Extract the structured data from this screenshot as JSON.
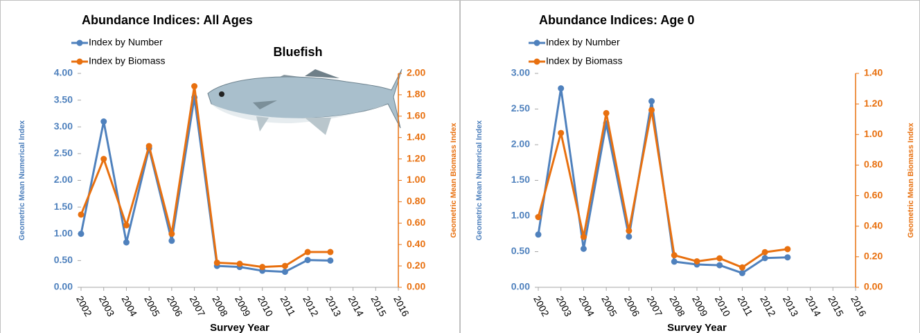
{
  "chart_data": [
    {
      "type": "line",
      "title": "Abundance Indices:  All Ages",
      "annotation": "Bluefish",
      "x_label": "Survey Year",
      "y_label": "Geometric Mean Numerical Index",
      "y2_label": "Geometric Mean Biomass Index",
      "categories": [
        "2002",
        "2003",
        "2004",
        "2005",
        "2006",
        "2007",
        "2008",
        "2009",
        "2010",
        "2011",
        "2012",
        "2013",
        "2014",
        "2015",
        "2016"
      ],
      "series": [
        {
          "name": "Index by Number",
          "color": "#4f81bd",
          "values": [
            1.0,
            3.1,
            0.84,
            2.6,
            0.87,
            3.55,
            0.4,
            0.38,
            0.31,
            0.29,
            0.51,
            0.5,
            null,
            null,
            null
          ]
        },
        {
          "name": "Index by Biomass",
          "color": "#e8700f",
          "axis": "y2",
          "values": [
            0.68,
            1.2,
            0.58,
            1.32,
            0.5,
            1.88,
            0.23,
            0.22,
            0.19,
            0.2,
            0.33,
            0.33,
            null,
            null,
            null
          ]
        }
      ],
      "ylim": [
        0,
        4
      ],
      "yticks": [
        {
          "value": 0,
          "label": "0.00"
        },
        {
          "value": 0.5,
          "label": "0.50"
        },
        {
          "value": 1,
          "label": "1.00"
        },
        {
          "value": 1.5,
          "label": "1.50"
        },
        {
          "value": 2,
          "label": "2.00"
        },
        {
          "value": 2.5,
          "label": "2.50"
        },
        {
          "value": 3,
          "label": "3.00"
        },
        {
          "value": 3.5,
          "label": "3.50"
        },
        {
          "value": 4,
          "label": "4.00"
        }
      ],
      "y2lim": [
        0,
        2
      ],
      "y2ticks": [
        {
          "value": 0,
          "label": "0.00"
        },
        {
          "value": 0.2,
          "label": "0.20"
        },
        {
          "value": 0.4,
          "label": "0.40"
        },
        {
          "value": 0.6,
          "label": "0.60"
        },
        {
          "value": 0.8,
          "label": "0.80"
        },
        {
          "value": 1,
          "label": "1.00"
        },
        {
          "value": 1.2,
          "label": "1.20"
        },
        {
          "value": 1.4,
          "label": "1.40"
        },
        {
          "value": 1.6,
          "label": "1.60"
        },
        {
          "value": 1.8,
          "label": "1.80"
        },
        {
          "value": 2,
          "label": "2.00"
        }
      ]
    },
    {
      "type": "line",
      "title": "Abundance Indices:  Age 0",
      "x_label": "Survey Year",
      "y_label": "Geometric Mean Numerical Index",
      "y2_label": "Geometric Mean Biomass Index",
      "categories": [
        "2002",
        "2003",
        "2004",
        "2005",
        "2006",
        "2007",
        "2008",
        "2009",
        "2010",
        "2011",
        "2012",
        "2013",
        "2014",
        "2015",
        "2016"
      ],
      "series": [
        {
          "name": "Index by Number",
          "color": "#4f81bd",
          "values": [
            0.74,
            2.79,
            0.54,
            2.3,
            0.71,
            2.61,
            0.36,
            0.32,
            0.31,
            0.2,
            0.41,
            0.42,
            null,
            null,
            null
          ]
        },
        {
          "name": "Index by Biomass",
          "color": "#e8700f",
          "axis": "y2",
          "values": [
            0.46,
            1.01,
            0.33,
            1.14,
            0.37,
            1.16,
            0.21,
            0.17,
            0.19,
            0.13,
            0.23,
            0.25,
            null,
            null,
            null
          ]
        }
      ],
      "ylim": [
        0,
        3
      ],
      "yticks": [
        {
          "value": 0,
          "label": "0.00"
        },
        {
          "value": 0.5,
          "label": "0.50"
        },
        {
          "value": 1,
          "label": "1.00"
        },
        {
          "value": 1.5,
          "label": "1.50"
        },
        {
          "value": 2,
          "label": "2.00"
        },
        {
          "value": 2.5,
          "label": "2.50"
        },
        {
          "value": 3,
          "label": "3.00"
        }
      ],
      "y2lim": [
        0,
        1.4
      ],
      "y2ticks": [
        {
          "value": 0,
          "label": "0.00"
        },
        {
          "value": 0.2,
          "label": "0.20"
        },
        {
          "value": 0.4,
          "label": "0.40"
        },
        {
          "value": 0.6,
          "label": "0.60"
        },
        {
          "value": 0.8,
          "label": "0.80"
        },
        {
          "value": 1,
          "label": "1.00"
        },
        {
          "value": 1.2,
          "label": "1.20"
        },
        {
          "value": 1.4,
          "label": "1.40"
        }
      ]
    }
  ]
}
